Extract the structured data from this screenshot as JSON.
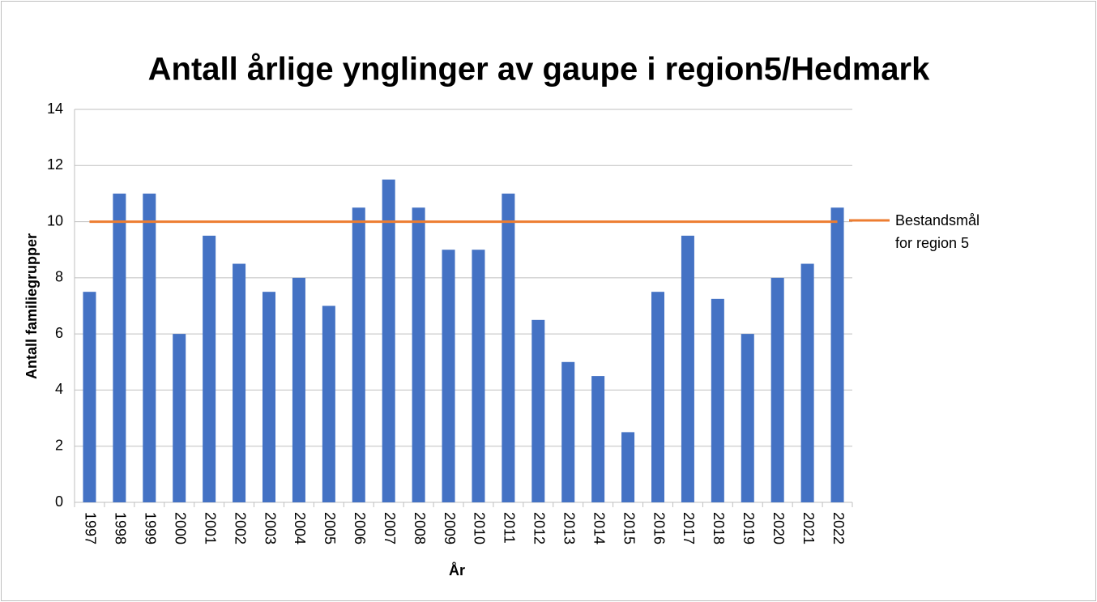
{
  "chart_data": {
    "type": "bar",
    "title": "Antall årlige ynglinger av gaupe i region5/Hedmark",
    "x_label": "År",
    "y_label": "Antall familiegrupper",
    "categories": [
      "1997",
      "1998",
      "1999",
      "2000",
      "2001",
      "2002",
      "2003",
      "2004",
      "2005",
      "2006",
      "2007",
      "2008",
      "2009",
      "2010",
      "2011",
      "2012",
      "2013",
      "2014",
      "2015",
      "2016",
      "2017",
      "2018",
      "2019",
      "2020",
      "2021",
      "2022"
    ],
    "series": [
      {
        "color": "#4472c4",
        "values": [
          7.5,
          11,
          11,
          6,
          9.5,
          8.5,
          7.5,
          8,
          7,
          10.5,
          11.5,
          10.5,
          9,
          9,
          11,
          6.5,
          5,
          4.5,
          2.5,
          7.5,
          9.5,
          7.25,
          6,
          8,
          8.5,
          10.5
        ]
      },
      {
        "name": "Bestandsmål for region 5",
        "type": "line",
        "color": "#ed7d31",
        "values": [
          10,
          10,
          10,
          10,
          10,
          10,
          10,
          10,
          10,
          10,
          10,
          10,
          10,
          10,
          10,
          10,
          10,
          10,
          10,
          10,
          10,
          10,
          10,
          10,
          10,
          10
        ]
      }
    ],
    "ylim": [
      0,
      14
    ],
    "yticks": [
      0,
      2,
      4,
      6,
      8,
      10,
      12,
      14
    ],
    "grid": true,
    "legend": "right"
  }
}
